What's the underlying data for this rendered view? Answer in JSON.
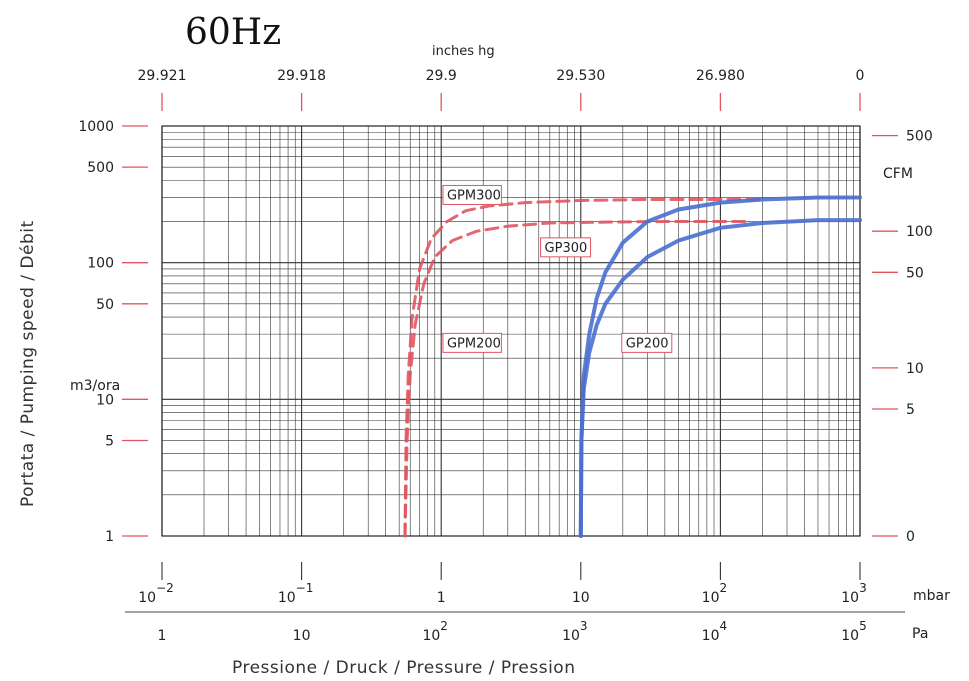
{
  "chart_data": {
    "type": "line",
    "frequency_label": "60Hz",
    "x_scale": "log",
    "y_scale": "log",
    "xlim": [
      0.01,
      1000
    ],
    "ylim": [
      1,
      1000
    ],
    "xlabel": "Pressione / Druck / Pressure / Pression",
    "ylabel": "Portata / Pumping speed / Débit",
    "bottom_axis": {
      "unit": "mbar",
      "ticks": [
        {
          "value": 0.01,
          "base": "10",
          "exp": "−2"
        },
        {
          "value": 0.1,
          "base": "10",
          "exp": "−1"
        },
        {
          "value": 1,
          "base": "1",
          "exp": ""
        },
        {
          "value": 10,
          "base": "10",
          "exp": ""
        },
        {
          "value": 100,
          "base": "10",
          "exp": "2"
        },
        {
          "value": 1000,
          "base": "10",
          "exp": "3"
        }
      ]
    },
    "pa_axis": {
      "unit": "Pa",
      "ticks": [
        {
          "value": 0.01,
          "base": "1",
          "exp": ""
        },
        {
          "value": 0.1,
          "base": "10",
          "exp": ""
        },
        {
          "value": 1,
          "base": "10",
          "exp": "2"
        },
        {
          "value": 10,
          "base": "10",
          "exp": "3"
        },
        {
          "value": 100,
          "base": "10",
          "exp": "4"
        },
        {
          "value": 1000,
          "base": "10",
          "exp": "5"
        }
      ]
    },
    "top_axis": {
      "unit": "inches hg",
      "ticks": [
        {
          "value": 0.01,
          "label": "29.921"
        },
        {
          "value": 0.1,
          "label": "29.918"
        },
        {
          "value": 1,
          "label": "29.9"
        },
        {
          "value": 10,
          "label": "29.530"
        },
        {
          "value": 100,
          "label": "26.980"
        },
        {
          "value": 1000,
          "label": "0"
        }
      ]
    },
    "left_axis": {
      "unit": "m3/ora",
      "ticks": [
        {
          "value": 1,
          "label": "1"
        },
        {
          "value": 5,
          "label": "5"
        },
        {
          "value": 10,
          "label": "10"
        },
        {
          "value": 50,
          "label": "50"
        },
        {
          "value": 100,
          "label": "100"
        },
        {
          "value": 500,
          "label": "500"
        },
        {
          "value": 1000,
          "label": "1000"
        }
      ]
    },
    "right_axis": {
      "unit": "CFM",
      "ticks": [
        {
          "value": 1,
          "label": "0"
        },
        {
          "value": 8.5,
          "label": "5"
        },
        {
          "value": 17,
          "label": "10"
        },
        {
          "value": 85,
          "label": "50"
        },
        {
          "value": 170,
          "label": "100"
        },
        {
          "value": 850,
          "label": "500"
        }
      ]
    },
    "series": [
      {
        "name": "GPM300",
        "color": "#e05560",
        "dash": true,
        "x": [
          0.55,
          0.56,
          0.58,
          0.62,
          0.7,
          0.85,
          1.1,
          1.5,
          2.2,
          4,
          10,
          30,
          100,
          200
        ],
        "y": [
          1,
          5,
          15,
          40,
          90,
          150,
          200,
          240,
          260,
          275,
          285,
          290,
          290,
          290
        ]
      },
      {
        "name": "GPM200",
        "color": "#e05560",
        "dash": true,
        "x": [
          0.55,
          0.57,
          0.6,
          0.65,
          0.75,
          0.9,
          1.2,
          1.8,
          3,
          6,
          15,
          40,
          100,
          150
        ],
        "y": [
          1,
          5,
          15,
          35,
          70,
          110,
          145,
          170,
          185,
          195,
          198,
          200,
          200,
          200
        ]
      },
      {
        "name": "GP300",
        "color": "#4a6fd0",
        "dash": false,
        "x": [
          10,
          10.1,
          10.5,
          11.5,
          13,
          15,
          20,
          30,
          50,
          100,
          200,
          500,
          1000
        ],
        "y": [
          1,
          5,
          15,
          30,
          55,
          85,
          140,
          200,
          245,
          275,
          290,
          300,
          300
        ]
      },
      {
        "name": "GP200",
        "color": "#4a6fd0",
        "dash": false,
        "x": [
          10,
          10.1,
          10.5,
          11.5,
          13,
          15,
          20,
          30,
          50,
          100,
          200,
          500,
          1000
        ],
        "y": [
          1,
          5,
          12,
          22,
          35,
          50,
          75,
          110,
          145,
          180,
          195,
          205,
          205
        ]
      }
    ],
    "annotations": [
      {
        "text": "GPM300",
        "x": 1.1,
        "y": 290
      },
      {
        "text": "GPM200",
        "x": 1.1,
        "y": 24
      },
      {
        "text": "GP300",
        "x": 5.5,
        "y": 120
      },
      {
        "text": "GP200",
        "x": 21,
        "y": 24
      }
    ]
  }
}
